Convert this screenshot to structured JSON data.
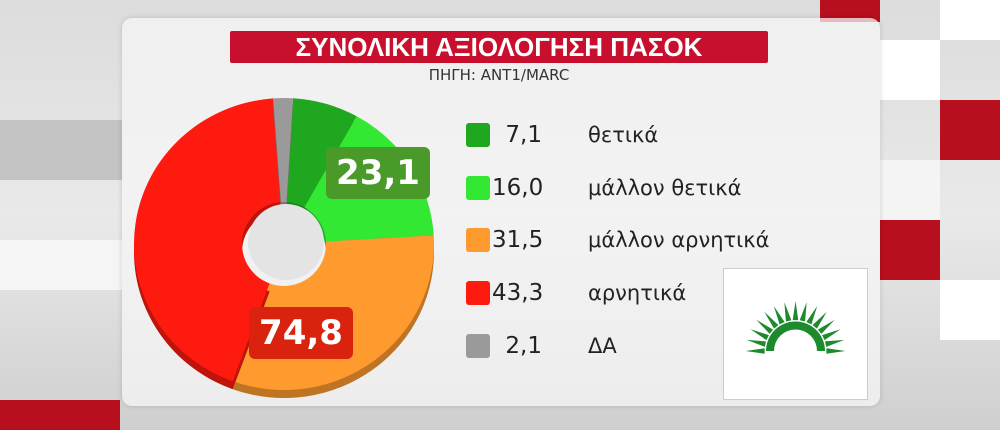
{
  "title": "ΣΥΝΟΛΙΚΗ ΑΞΙΟΛΟΓΗΣΗ ΠΑΣΟΚ",
  "source": "ΠΗΓΗ: ANT1/MARC",
  "chart_data": {
    "type": "pie",
    "title": "ΣΥΝΟΛΙΚΗ ΑΞΙΟΛΟΓΗΣΗ ΠΑΣΟΚ",
    "donut": true,
    "categories": [
      "θετικά",
      "μάλλον θετικά",
      "μάλλον αρνητικά",
      "αρνητικά",
      "ΔΑ"
    ],
    "values": [
      7.1,
      16.0,
      31.5,
      43.3,
      2.1
    ],
    "value_labels": [
      "7,1",
      "16,0",
      "31,5",
      "43,3",
      "2,1"
    ],
    "colors": [
      "#1fa81f",
      "#33e833",
      "#ff9a2e",
      "#ff1a0f",
      "#9a9a9a"
    ],
    "group_labels": [
      {
        "text": "23,1",
        "color": "#4a9a2a"
      },
      {
        "text": "74,8",
        "color": "#d9230f"
      }
    ],
    "legend_position": "right"
  },
  "logo": "PASOK green sun"
}
